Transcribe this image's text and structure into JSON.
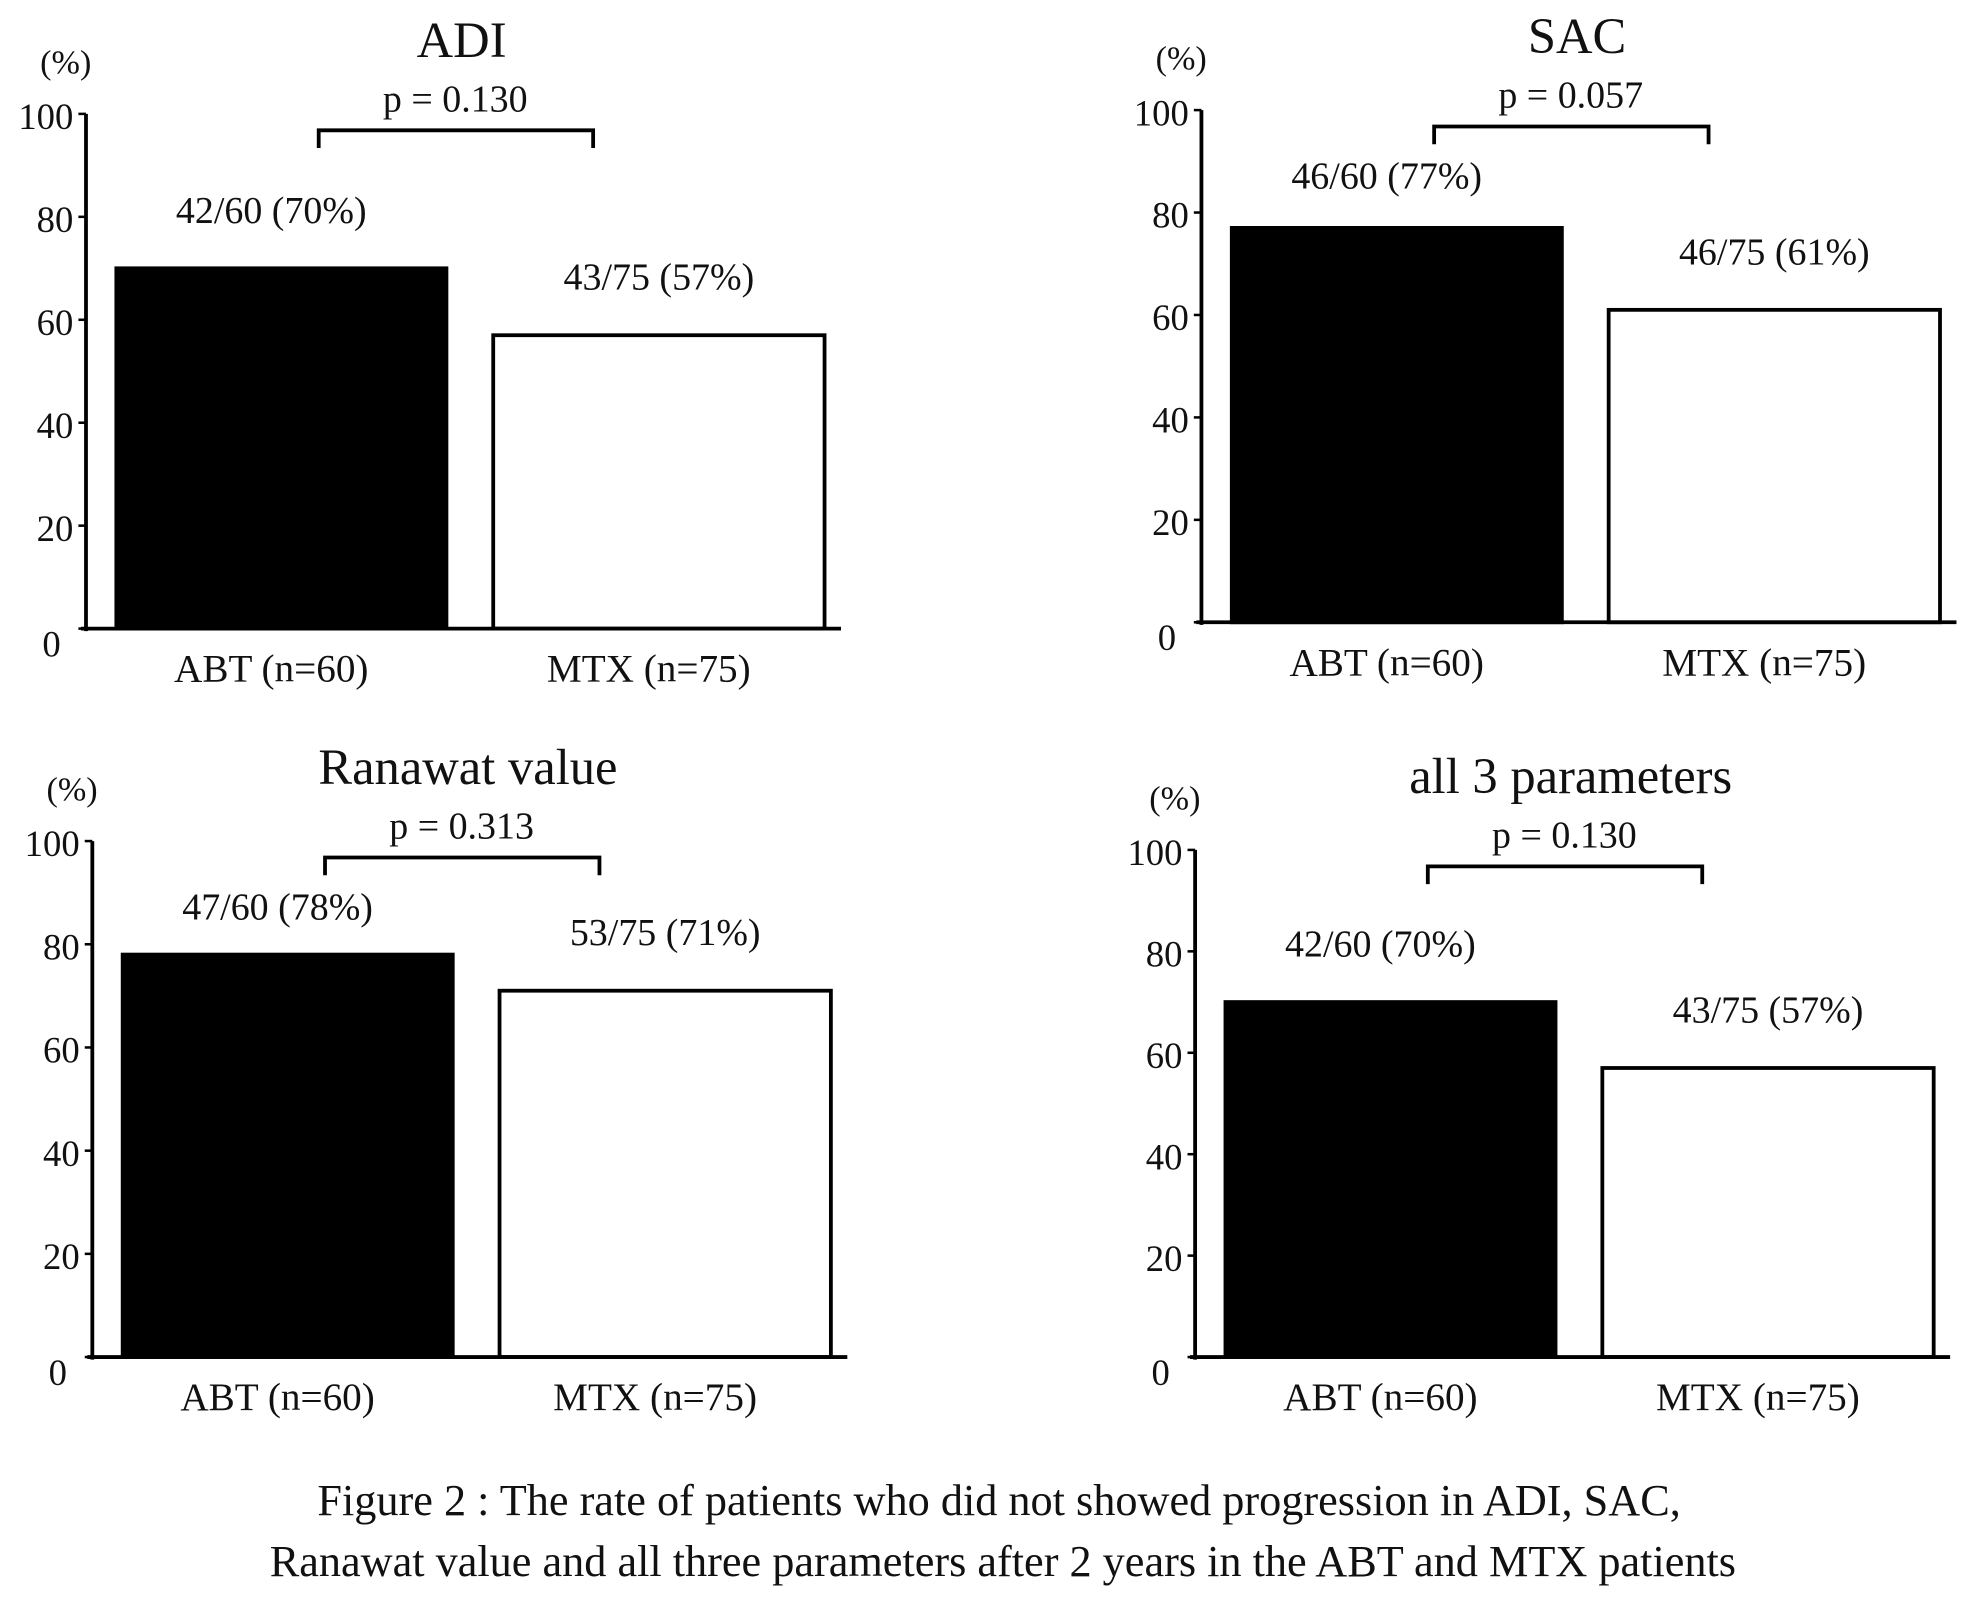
{
  "chart_data": [
    {
      "type": "bar",
      "title": "ADI",
      "ylabel": "(%)",
      "ylim": [
        0,
        100
      ],
      "yticks": [
        "0",
        "20",
        "40",
        "60",
        "80",
        "100"
      ],
      "categories": [
        "ABT (n=60)",
        "MTX (n=75)"
      ],
      "values": [
        70,
        57
      ],
      "data_labels": [
        "42/60 (70%)",
        "43/75 (57%)"
      ],
      "p_value": "p = 0.130",
      "colors": [
        "#000000",
        "#ffffff"
      ]
    },
    {
      "type": "bar",
      "title": "SAC",
      "ylabel": "(%)",
      "ylim": [
        0,
        100
      ],
      "yticks": [
        "0",
        "20",
        "40",
        "60",
        "80",
        "100"
      ],
      "categories": [
        "ABT (n=60)",
        "MTX (n=75)"
      ],
      "values": [
        77,
        61
      ],
      "data_labels": [
        "46/60 (77%)",
        "46/75 (61%)"
      ],
      "p_value": "p = 0.057",
      "colors": [
        "#000000",
        "#ffffff"
      ]
    },
    {
      "type": "bar",
      "title": "Ranawat value",
      "ylabel": "(%)",
      "ylim": [
        0,
        100
      ],
      "yticks": [
        "0",
        "20",
        "40",
        "60",
        "80",
        "100"
      ],
      "categories": [
        "ABT (n=60)",
        "MTX (n=75)"
      ],
      "values": [
        78,
        71
      ],
      "data_labels": [
        "47/60 (78%)",
        "53/75 (71%)"
      ],
      "p_value": "p = 0.313",
      "colors": [
        "#000000",
        "#ffffff"
      ]
    },
    {
      "type": "bar",
      "title": "all 3 parameters",
      "ylabel": "(%)",
      "ylim": [
        0,
        100
      ],
      "yticks": [
        "0",
        "20",
        "40",
        "60",
        "80",
        "100"
      ],
      "categories": [
        "ABT (n=60)",
        "MTX (n=75)"
      ],
      "values": [
        70,
        57
      ],
      "data_labels": [
        "42/60 (70%)",
        "43/75 (57%)"
      ],
      "p_value": "p = 0.130",
      "colors": [
        "#000000",
        "#ffffff"
      ]
    }
  ],
  "caption": {
    "line1": "Figure 2 : The rate of patients who did not showed progression in ADI, SAC,",
    "line2": "Ranawat value and all three parameters after 2 years in the ABT and MTX patients"
  }
}
